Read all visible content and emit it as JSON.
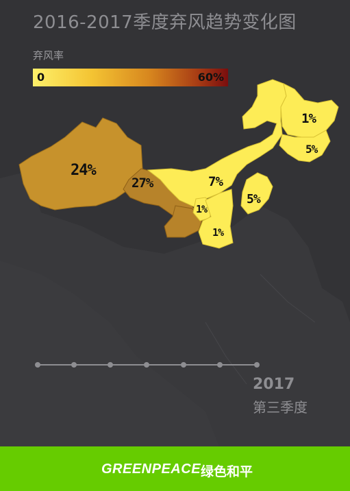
{
  "title": "2016-2017季度弃风趋势变化图",
  "legend": {
    "label": "弃风率",
    "min": "0",
    "max": "60%"
  },
  "regions": [
    {
      "name": "xinjiang",
      "value": "24%",
      "color": "#c7922c"
    },
    {
      "name": "gansu",
      "value": "27%",
      "color": "#b7832a"
    },
    {
      "name": "inner-mongolia",
      "value": "7%",
      "color": "#fdec56"
    },
    {
      "name": "heilongjiang",
      "value": "1%",
      "color": "#fdec56"
    },
    {
      "name": "jilin",
      "value": "5%",
      "color": "#fdec56"
    },
    {
      "name": "liaoning",
      "value": "5%",
      "color": "#fdec56"
    },
    {
      "name": "ningxia",
      "value": "1%",
      "color": "#fdec56"
    },
    {
      "name": "shaanxi",
      "value": "1%",
      "color": "#fdec56"
    },
    {
      "name": "qinghai",
      "value": "",
      "color": "#b7832a"
    }
  ],
  "timeline": {
    "dots": 7,
    "color": "#8e8e92"
  },
  "period": {
    "year": "2017",
    "quarter": "第三季度"
  },
  "footer": {
    "brand": "GREENPEACE",
    "brand_cn": "绿色和平",
    "color": "#66cc00"
  }
}
